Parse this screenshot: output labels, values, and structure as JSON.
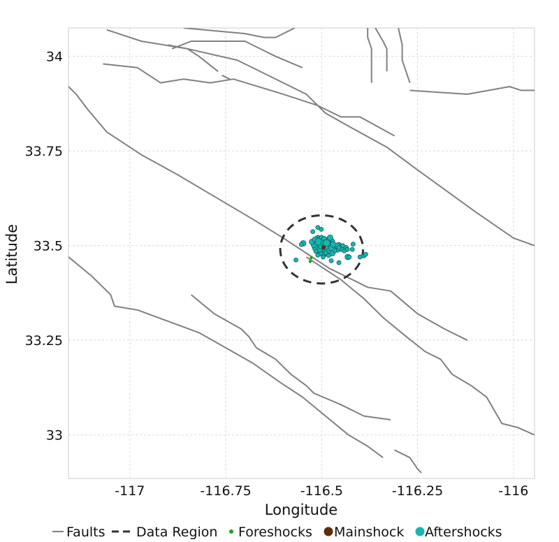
{
  "plot": {
    "xlabel": "Longitude",
    "ylabel": "Latitude",
    "xlim": [
      -117.16,
      -115.945
    ],
    "ylim": [
      32.885,
      34.075
    ],
    "grid": true,
    "x_ticks": [
      {
        "value": -117,
        "label": "-117"
      },
      {
        "value": -116.75,
        "label": "-116.75"
      },
      {
        "value": -116.5,
        "label": "-116.5"
      },
      {
        "value": -116.25,
        "label": "-116.25"
      },
      {
        "value": -116,
        "label": "-116"
      }
    ],
    "y_ticks": [
      {
        "value": 33,
        "label": "33"
      },
      {
        "value": 33.25,
        "label": "33.25"
      },
      {
        "value": 33.5,
        "label": "33.5"
      },
      {
        "value": 33.75,
        "label": "33.75"
      },
      {
        "value": 34,
        "label": "34"
      }
    ]
  },
  "legend": {
    "items": [
      {
        "key": "faults",
        "label": "Faults",
        "symbol": "line",
        "color": "#808080"
      },
      {
        "key": "region",
        "label": "Data Region",
        "symbol": "dashed-line",
        "color": "#333333"
      },
      {
        "key": "foreshocks",
        "label": "Foreshocks",
        "symbol": "dot-small",
        "color": "#11aa11"
      },
      {
        "key": "mainshock",
        "label": "Mainshock",
        "symbol": "dot-large",
        "color": "#5c2e0a"
      },
      {
        "key": "aftershocks",
        "label": "Aftershocks",
        "symbol": "dot-large",
        "color": "#14b8b0"
      }
    ]
  },
  "chart_data": {
    "type": "scatter",
    "colors": {
      "faults": "#808080",
      "region": "#333333",
      "foreshocks": "#11aa11",
      "mainshock": "#5c2e0a",
      "aftershocks": "#14b8b0"
    },
    "faults": [
      [
        [
          -117.16,
          33.92
        ],
        [
          -117.14,
          33.9
        ],
        [
          -117.11,
          33.86
        ],
        [
          -117.06,
          33.8
        ],
        [
          -116.97,
          33.74
        ],
        [
          -116.88,
          33.69
        ],
        [
          -116.78,
          33.63
        ],
        [
          -116.68,
          33.57
        ],
        [
          -116.6,
          33.52
        ],
        [
          -116.54,
          33.48
        ],
        [
          -116.48,
          33.44
        ],
        [
          -116.42,
          33.41
        ],
        [
          -116.38,
          33.39
        ],
        [
          -116.32,
          33.38
        ],
        [
          -116.25,
          33.32
        ],
        [
          -116.18,
          33.28
        ],
        [
          -116.12,
          33.25
        ]
      ],
      [
        [
          -117.16,
          33.47
        ],
        [
          -117.1,
          33.42
        ],
        [
          -117.05,
          33.37
        ],
        [
          -117.04,
          33.34
        ],
        [
          -116.98,
          33.33
        ],
        [
          -116.9,
          33.3
        ],
        [
          -116.82,
          33.27
        ],
        [
          -116.75,
          33.23
        ],
        [
          -116.68,
          33.19
        ],
        [
          -116.61,
          33.14
        ],
        [
          -116.55,
          33.1
        ],
        [
          -116.49,
          33.05
        ],
        [
          -116.43,
          33.0
        ],
        [
          -116.38,
          32.97
        ],
        [
          -116.34,
          32.94
        ]
      ],
      [
        [
          -116.84,
          33.37
        ],
        [
          -116.78,
          33.32
        ],
        [
          -116.71,
          33.28
        ],
        [
          -116.69,
          33.26
        ],
        [
          -116.67,
          33.23
        ],
        [
          -116.62,
          33.2
        ],
        [
          -116.58,
          33.16
        ],
        [
          -116.54,
          33.13
        ],
        [
          -116.52,
          33.11
        ],
        [
          -116.45,
          33.08
        ],
        [
          -116.39,
          33.05
        ],
        [
          -116.32,
          33.04
        ]
      ],
      [
        [
          -116.54,
          33.47
        ],
        [
          -116.45,
          33.41
        ],
        [
          -116.39,
          33.36
        ],
        [
          -116.34,
          33.31
        ],
        [
          -116.28,
          33.26
        ],
        [
          -116.23,
          33.22
        ],
        [
          -116.19,
          33.2
        ],
        [
          -116.16,
          33.16
        ],
        [
          -116.11,
          33.13
        ],
        [
          -116.07,
          33.1
        ],
        [
          -116.03,
          33.03
        ],
        [
          -115.99,
          33.02
        ],
        [
          -115.945,
          33.0
        ]
      ],
      [
        [
          -116.31,
          32.96
        ],
        [
          -116.27,
          32.94
        ],
        [
          -116.25,
          32.91
        ],
        [
          -116.24,
          32.9
        ]
      ],
      [
        [
          -117.06,
          34.07
        ],
        [
          -116.97,
          34.04
        ],
        [
          -116.85,
          34.02
        ],
        [
          -116.72,
          33.99
        ],
        [
          -116.6,
          33.93
        ],
        [
          -116.54,
          33.9
        ],
        [
          -116.49,
          33.85
        ],
        [
          -116.42,
          33.81
        ],
        [
          -116.33,
          33.76
        ],
        [
          -116.25,
          33.7
        ],
        [
          -116.1,
          33.59
        ],
        [
          -116.0,
          33.52
        ],
        [
          -115.945,
          33.5
        ]
      ],
      [
        [
          -117.07,
          33.98
        ],
        [
          -116.98,
          33.97
        ],
        [
          -116.92,
          33.93
        ],
        [
          -116.86,
          33.94
        ],
        [
          -116.79,
          33.93
        ],
        [
          -116.73,
          33.94
        ],
        [
          -116.6,
          33.9
        ],
        [
          -116.51,
          33.87
        ],
        [
          -116.45,
          33.84
        ],
        [
          -116.4,
          33.84
        ],
        [
          -116.31,
          33.79
        ]
      ],
      [
        [
          -116.9,
          34.03
        ],
        [
          -116.85,
          34.02
        ],
        [
          -116.82,
          34.0
        ],
        [
          -116.77,
          33.96
        ]
      ],
      [
        [
          -116.76,
          33.95
        ],
        [
          -116.74,
          33.94
        ]
      ],
      [
        [
          -116.89,
          34.02
        ],
        [
          -116.84,
          34.04
        ],
        [
          -116.7,
          34.04
        ],
        [
          -116.62,
          34.0
        ],
        [
          -116.55,
          33.97
        ]
      ],
      [
        [
          -116.86,
          34.075
        ],
        [
          -116.7,
          34.06
        ],
        [
          -116.65,
          34.05
        ],
        [
          -116.62,
          34.05
        ],
        [
          -116.6,
          34.06
        ],
        [
          -116.57,
          34.075
        ]
      ],
      [
        [
          -116.38,
          34.075
        ],
        [
          -116.38,
          34.05
        ],
        [
          -116.37,
          34.02
        ],
        [
          -116.37,
          33.93
        ]
      ],
      [
        [
          -116.36,
          34.075
        ],
        [
          -116.34,
          34.04
        ],
        [
          -116.33,
          34.02
        ],
        [
          -116.33,
          33.96
        ]
      ],
      [
        [
          -116.3,
          34.075
        ],
        [
          -116.29,
          34.03
        ],
        [
          -116.29,
          33.99
        ],
        [
          -116.28,
          33.96
        ],
        [
          -116.27,
          33.93
        ]
      ],
      [
        [
          -116.27,
          33.91
        ],
        [
          -116.12,
          33.9
        ],
        [
          -116.01,
          33.92
        ],
        [
          -115.98,
          33.91
        ],
        [
          -115.945,
          33.91
        ]
      ]
    ],
    "data_region": {
      "center_lon": -116.5,
      "center_lat": 33.49,
      "radius_deg": 0.09
    },
    "foreshocks": [
      {
        "lon": -116.527,
        "lat": 33.468
      },
      {
        "lon": -116.53,
        "lat": 33.458
      },
      {
        "lon": -116.52,
        "lat": 33.51
      }
    ],
    "mainshock": [
      {
        "lon": -116.495,
        "lat": 33.495
      }
    ],
    "aftershocks": [
      {
        "lon": -116.51,
        "lat": 33.52,
        "r": 4
      },
      {
        "lon": -116.505,
        "lat": 33.515,
        "r": 5
      },
      {
        "lon": -116.497,
        "lat": 33.51,
        "r": 4
      },
      {
        "lon": -116.49,
        "lat": 33.505,
        "r": 5
      },
      {
        "lon": -116.485,
        "lat": 33.5,
        "r": 4
      },
      {
        "lon": -116.48,
        "lat": 33.495,
        "r": 4
      },
      {
        "lon": -116.5,
        "lat": 33.505,
        "r": 6
      },
      {
        "lon": -116.495,
        "lat": 33.498,
        "r": 5
      },
      {
        "lon": -116.505,
        "lat": 33.5,
        "r": 4
      },
      {
        "lon": -116.512,
        "lat": 33.508,
        "r": 4
      },
      {
        "lon": -116.49,
        "lat": 33.49,
        "r": 4
      },
      {
        "lon": -116.47,
        "lat": 33.492,
        "r": 4
      },
      {
        "lon": -116.475,
        "lat": 33.51,
        "r": 5
      },
      {
        "lon": -116.468,
        "lat": 33.5,
        "r": 4
      },
      {
        "lon": -116.462,
        "lat": 33.495,
        "r": 4
      },
      {
        "lon": -116.458,
        "lat": 33.488,
        "r": 3
      },
      {
        "lon": -116.452,
        "lat": 33.495,
        "r": 3
      },
      {
        "lon": -116.448,
        "lat": 33.49,
        "r": 3
      },
      {
        "lon": -116.5,
        "lat": 33.485,
        "r": 4
      },
      {
        "lon": -116.493,
        "lat": 33.478,
        "r": 4
      },
      {
        "lon": -116.485,
        "lat": 33.482,
        "r": 5
      },
      {
        "lon": -116.505,
        "lat": 33.48,
        "r": 4
      },
      {
        "lon": -116.51,
        "lat": 33.49,
        "r": 4
      },
      {
        "lon": -116.515,
        "lat": 33.495,
        "r": 5
      },
      {
        "lon": -116.52,
        "lat": 33.502,
        "r": 4
      },
      {
        "lon": -116.525,
        "lat": 33.51,
        "r": 4
      },
      {
        "lon": -116.517,
        "lat": 33.516,
        "r": 4
      },
      {
        "lon": -116.5,
        "lat": 33.522,
        "r": 3
      },
      {
        "lon": -116.493,
        "lat": 33.517,
        "r": 4
      },
      {
        "lon": -116.484,
        "lat": 33.512,
        "r": 4
      },
      {
        "lon": -116.478,
        "lat": 33.504,
        "r": 4
      },
      {
        "lon": -116.498,
        "lat": 33.493,
        "r": 5
      },
      {
        "lon": -116.488,
        "lat": 33.497,
        "r": 4
      },
      {
        "lon": -116.505,
        "lat": 33.49,
        "r": 4
      },
      {
        "lon": -116.515,
        "lat": 33.485,
        "r": 3
      },
      {
        "lon": -116.49,
        "lat": 33.5,
        "r": 6
      },
      {
        "lon": -116.48,
        "lat": 33.487,
        "r": 4
      },
      {
        "lon": -116.472,
        "lat": 33.48,
        "r": 4
      },
      {
        "lon": -116.466,
        "lat": 33.487,
        "r": 3
      },
      {
        "lon": -116.455,
        "lat": 33.503,
        "r": 3
      },
      {
        "lon": -116.459,
        "lat": 33.5,
        "r": 4
      },
      {
        "lon": -116.475,
        "lat": 33.494,
        "r": 4
      },
      {
        "lon": -116.482,
        "lat": 33.474,
        "r": 3
      },
      {
        "lon": -116.496,
        "lat": 33.47,
        "r": 3
      },
      {
        "lon": -116.51,
        "lat": 33.475,
        "r": 3
      },
      {
        "lon": -116.5,
        "lat": 33.5,
        "r": 5
      },
      {
        "lon": -116.508,
        "lat": 33.51,
        "r": 5
      },
      {
        "lon": -116.495,
        "lat": 33.507,
        "r": 4
      },
      {
        "lon": -116.487,
        "lat": 33.507,
        "r": 5
      },
      {
        "lon": -116.47,
        "lat": 33.503,
        "r": 4
      },
      {
        "lon": -116.478,
        "lat": 33.521,
        "r": 4
      },
      {
        "lon": -116.501,
        "lat": 33.543,
        "r": 3
      },
      {
        "lon": -116.51,
        "lat": 33.548,
        "r": 3
      },
      {
        "lon": -116.523,
        "lat": 33.537,
        "r": 3
      },
      {
        "lon": -116.548,
        "lat": 33.506,
        "r": 4
      },
      {
        "lon": -116.553,
        "lat": 33.503,
        "r": 3
      },
      {
        "lon": -116.441,
        "lat": 33.486,
        "r": 3
      },
      {
        "lon": -116.436,
        "lat": 33.495,
        "r": 3
      },
      {
        "lon": -116.433,
        "lat": 33.49,
        "r": 3
      },
      {
        "lon": -116.432,
        "lat": 33.47,
        "r": 4
      },
      {
        "lon": -116.428,
        "lat": 33.47,
        "r": 3
      },
      {
        "lon": -116.42,
        "lat": 33.49,
        "r": 3
      },
      {
        "lon": -116.418,
        "lat": 33.504,
        "r": 3
      },
      {
        "lon": -116.4,
        "lat": 33.47,
        "r": 3
      },
      {
        "lon": -116.39,
        "lat": 33.473,
        "r": 3
      },
      {
        "lon": -116.385,
        "lat": 33.477,
        "r": 3
      },
      {
        "lon": -116.455,
        "lat": 33.455,
        "r": 3
      },
      {
        "lon": -116.475,
        "lat": 33.46,
        "r": 3
      },
      {
        "lon": -116.567,
        "lat": 33.462,
        "r": 3
      },
      {
        "lon": -116.455,
        "lat": 33.495,
        "r": 3
      },
      {
        "lon": -116.445,
        "lat": 33.5,
        "r": 3
      }
    ]
  }
}
